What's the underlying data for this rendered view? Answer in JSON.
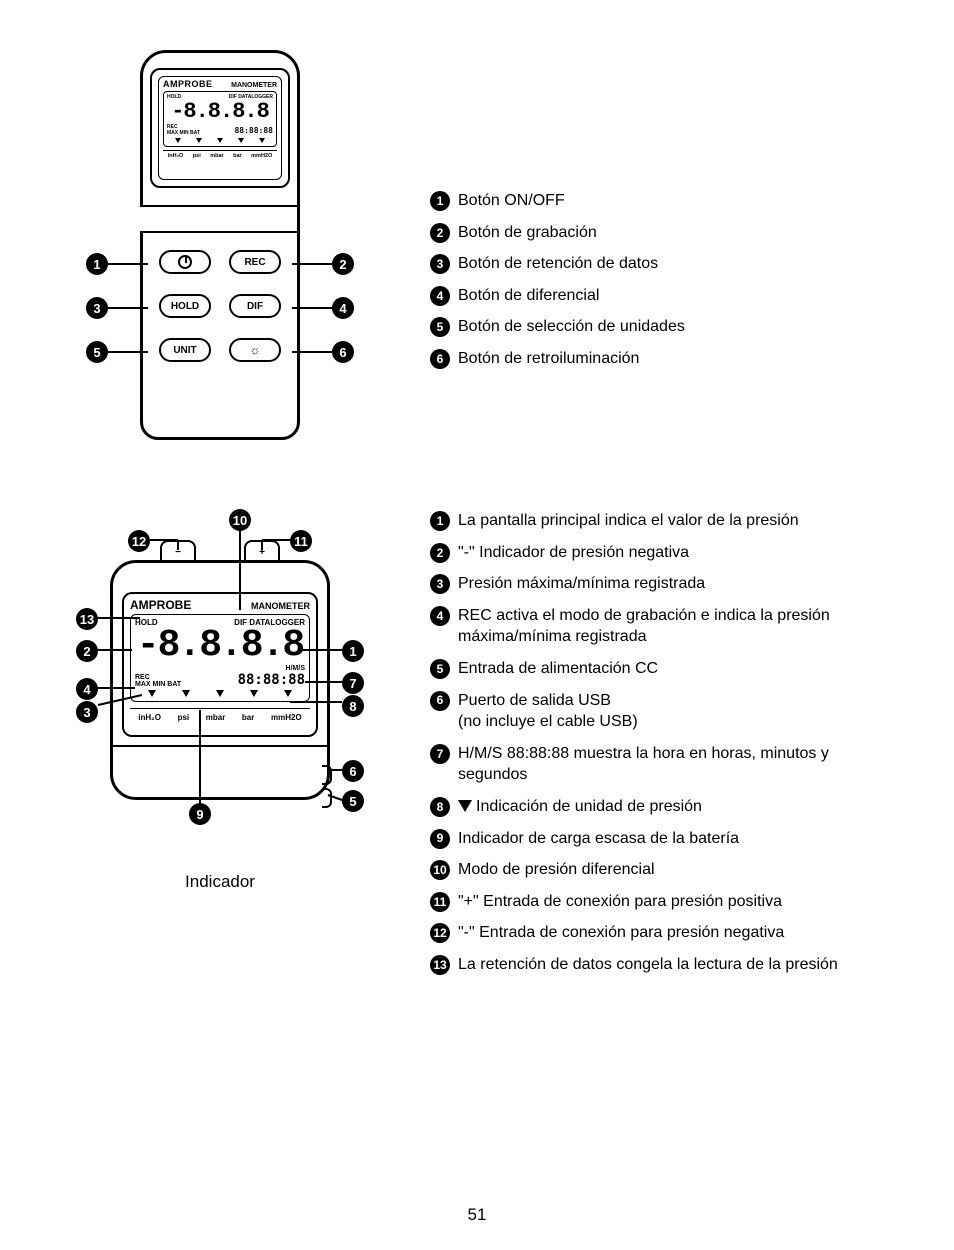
{
  "page_number": "51",
  "brand": "AMPROBE",
  "device_label": "MANOMETER",
  "lcd": {
    "top_left": "HOLD",
    "top_right_dif": "DIF",
    "top_right_dl": "DATALOGGER",
    "digits": "-8.8.8.8",
    "rec": "REC",
    "maxminbat": "MAX MIN BAT",
    "hms": "H/M/S",
    "time": "88:88:88",
    "units": [
      "inH₂O",
      "psi",
      "mbar",
      "bar",
      "mmH2O"
    ]
  },
  "buttons": {
    "rec": "REC",
    "hold": "HOLD",
    "dif": "DIF",
    "unit": "UNIT"
  },
  "ports": {
    "minus": "−",
    "plus": "+"
  },
  "caption_indicator": "Indicador",
  "legend_buttons": [
    "Botón ON/OFF",
    "Botón de grabación",
    "Botón de retención de datos",
    "Botón de diferencial",
    "Botón de selección de unidades",
    "Botón de retroiluminación"
  ],
  "legend_display": [
    "La pantalla principal indica el valor de la presión",
    "\"-\" Indicador de presión negativa",
    "Presión máxima/mínima registrada",
    "REC activa el modo de grabación e indica la presión máxima/mínima registrada",
    "Entrada de alimentación CC",
    "Puerto de salida USB\n(no incluye el cable USB)",
    "H/M/S 88:88:88 muestra la hora en horas, minutos y segundos",
    "Indicación de unidad de presión",
    "Indicador de carga escasa de la batería",
    "Modo de presión diferencial",
    "\"+\" Entrada de conexión para presión positiva",
    "\"-\" Entrada de conexión para presión negativa",
    "La retención de datos congela la lectura de la presión"
  ],
  "display_item_with_triangle_index": 7,
  "colors": {
    "fg": "#000000",
    "bg": "#ffffff"
  }
}
